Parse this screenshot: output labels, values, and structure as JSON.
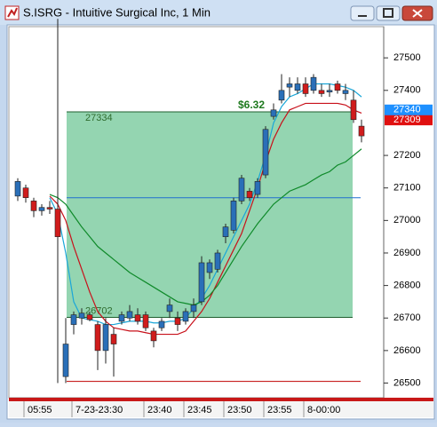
{
  "window": {
    "title": "S.ISRG - Intuitive Surgical Inc, 1 Min"
  },
  "chart_data": {
    "type": "candlestick",
    "categories": [
      null,
      "05:55",
      null,
      null,
      null,
      null,
      null,
      "7-23-23:30",
      null,
      null,
      null,
      null,
      null,
      null,
      null,
      null,
      "23:40",
      null,
      null,
      null,
      null,
      "23:45",
      null,
      null,
      null,
      null,
      "23:50",
      null,
      null,
      null,
      null,
      "23:55",
      null,
      null,
      null,
      null,
      "8-00:00",
      null,
      null,
      null,
      null,
      null,
      null,
      null
    ],
    "open": [
      27075,
      27100,
      27060,
      27030,
      27040,
      27035,
      26520,
      26680,
      26700,
      26710,
      26680,
      26600,
      26650,
      26690,
      26700,
      26710,
      26710,
      26660,
      26670,
      26720,
      26700,
      26690,
      26720,
      26750,
      26840,
      26850,
      26950,
      26970,
      27060,
      27090,
      27080,
      27140,
      27320,
      27370,
      27410,
      27400,
      27420,
      27400,
      27400,
      27395,
      27420,
      27390,
      27370,
      27290
    ],
    "high": [
      27130,
      27110,
      27070,
      27050,
      27060,
      27620,
      26700,
      26720,
      26730,
      26720,
      26690,
      26700,
      26670,
      26720,
      26740,
      26730,
      26720,
      26670,
      26700,
      26760,
      26720,
      26730,
      26760,
      26890,
      26880,
      26910,
      26990,
      27070,
      27140,
      27100,
      27130,
      27290,
      27360,
      27450,
      27440,
      27440,
      27440,
      27450,
      27420,
      27420,
      27430,
      27420,
      27400,
      27310
    ],
    "low": [
      27060,
      27055,
      27010,
      27015,
      27020,
      26500,
      26500,
      26650,
      26680,
      26690,
      26540,
      26560,
      26520,
      26680,
      26690,
      26680,
      26660,
      26610,
      26660,
      26700,
      26660,
      26680,
      26700,
      26740,
      26820,
      26840,
      26930,
      26960,
      27050,
      27060,
      27070,
      27130,
      27310,
      27360,
      27380,
      27390,
      27380,
      27390,
      27380,
      27380,
      27390,
      27370,
      27300,
      27240
    ],
    "close": [
      27120,
      27070,
      27030,
      27040,
      27035,
      26950,
      26620,
      26710,
      26715,
      26695,
      26600,
      26680,
      26620,
      26710,
      26720,
      26690,
      26670,
      26630,
      26690,
      26740,
      26680,
      26720,
      26740,
      26870,
      26870,
      26900,
      26980,
      27060,
      27130,
      27070,
      27120,
      27280,
      27340,
      27400,
      27420,
      27420,
      27390,
      27440,
      27390,
      27400,
      27400,
      27400,
      27310,
      27260
    ],
    "up_color": "#2a6fb8",
    "down_color": "#d01c1c",
    "lines": [
      {
        "color": "#1aa6d8",
        "values": [
          null,
          null,
          null,
          null,
          27070,
          27020,
          26900,
          26750,
          26700,
          26695,
          26690,
          26680,
          26680,
          26685,
          26690,
          26690,
          26690,
          26685,
          26685,
          26690,
          26690,
          26700,
          26730,
          26760,
          26800,
          26850,
          26900,
          26950,
          27000,
          27050,
          27120,
          27200,
          27300,
          27350,
          27380,
          27390,
          27405,
          27420,
          27420,
          27420,
          27415,
          27410,
          27400,
          27380
        ]
      },
      {
        "color": "#c8101a",
        "values": [
          null,
          null,
          null,
          null,
          27075,
          27050,
          27000,
          26920,
          26850,
          26780,
          26720,
          26690,
          26670,
          26665,
          26660,
          26660,
          26655,
          26650,
          26650,
          26650,
          26650,
          26660,
          26690,
          26720,
          26760,
          26810,
          26860,
          26910,
          26960,
          27030,
          27100,
          27180,
          27250,
          27300,
          27340,
          27350,
          27360,
          27360,
          27360,
          27360,
          27360,
          27355,
          27340,
          27330
        ]
      },
      {
        "color": "#0f8a2a",
        "values": [
          null,
          null,
          null,
          null,
          27080,
          27070,
          27050,
          27015,
          26980,
          26950,
          26920,
          26900,
          26880,
          26860,
          26840,
          26825,
          26810,
          26795,
          26780,
          26765,
          26750,
          26745,
          26740,
          26750,
          26770,
          26800,
          26840,
          26880,
          26920,
          26955,
          26990,
          27020,
          27050,
          27070,
          27090,
          27100,
          27110,
          27125,
          27140,
          27150,
          27170,
          27180,
          27200,
          27220
        ]
      }
    ],
    "box": {
      "top": 27334,
      "bottom": 26702,
      "color": "#3cb371",
      "annotation": "$6.32"
    },
    "hlines": [
      {
        "value": 27070,
        "color": "#1e6fd0"
      },
      {
        "value": 26505,
        "color": "#c00000"
      }
    ],
    "price_markers": [
      {
        "value": 27309,
        "color": "#e01010"
      },
      {
        "value": 27340,
        "color": "#1e90ff"
      }
    ],
    "ylim": [
      26455,
      27596
    ],
    "yticks": [
      26500,
      26600,
      26700,
      26800,
      26900,
      27000,
      27100,
      27200,
      27400,
      27500
    ]
  }
}
